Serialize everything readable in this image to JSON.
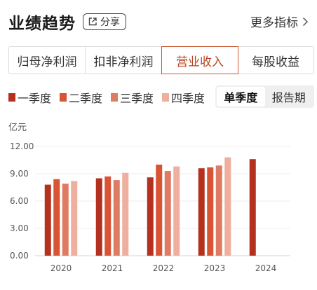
{
  "header": {
    "title": "业绩趋势",
    "share_label": "分享",
    "more_label": "更多指标"
  },
  "tabs": [
    {
      "label": "归母净利润",
      "active": false
    },
    {
      "label": "扣非净利润",
      "active": false
    },
    {
      "label": "营业收入",
      "active": true
    },
    {
      "label": "每股收益",
      "active": false
    }
  ],
  "toggle": {
    "options": [
      {
        "label": "单季度",
        "active": true
      },
      {
        "label": "报告期",
        "active": false
      }
    ]
  },
  "colors": {
    "accent": "#c8542e",
    "q1": "#b5311f",
    "q2": "#d95335",
    "q3": "#e07b63",
    "q4": "#efaf9f"
  },
  "chart_data": {
    "type": "bar",
    "unit": "亿元",
    "categories": [
      "2020",
      "2021",
      "2022",
      "2023",
      "2024"
    ],
    "series": [
      {
        "name": "一季度",
        "color": "#b5311f",
        "values": [
          7.8,
          8.5,
          8.6,
          9.6,
          10.6
        ]
      },
      {
        "name": "二季度",
        "color": "#d95335",
        "values": [
          8.4,
          8.7,
          10.0,
          9.7,
          null
        ]
      },
      {
        "name": "三季度",
        "color": "#e07b63",
        "values": [
          7.9,
          8.3,
          9.3,
          9.9,
          null
        ]
      },
      {
        "name": "四季度",
        "color": "#efaf9f",
        "values": [
          8.2,
          9.1,
          9.8,
          10.8,
          null
        ]
      }
    ],
    "yticks": [
      "0.00",
      "3.00",
      "6.00",
      "9.00",
      "12.00"
    ],
    "ylim": [
      0,
      12
    ],
    "grid": true,
    "legend": "top-left"
  }
}
